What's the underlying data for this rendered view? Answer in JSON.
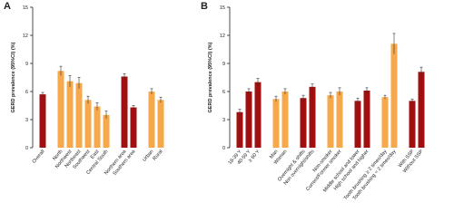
{
  "chart_data": [
    {
      "type": "bar",
      "label": "A",
      "ylabel": "GERD prevalence (95%CI) (%)",
      "ylim": [
        0,
        15
      ],
      "yticks": [
        0,
        3,
        6,
        9,
        12,
        15
      ],
      "categories": [
        "Overall",
        "North",
        "Northwest",
        "Northeast",
        "Southwest",
        "East",
        "Central South",
        "Northern area",
        "Southern area",
        "Urban",
        "Rural"
      ],
      "values": [
        5.7,
        8.2,
        7.1,
        6.9,
        5.1,
        4.4,
        3.5,
        7.6,
        4.3,
        6.0,
        5.1
      ],
      "errors": [
        0.2,
        0.5,
        0.6,
        0.6,
        0.4,
        0.4,
        0.4,
        0.3,
        0.2,
        0.3,
        0.3
      ],
      "colors": [
        "#a01010",
        "#f7a84a",
        "#f7a84a",
        "#f7a84a",
        "#f7a84a",
        "#f7a84a",
        "#f7a84a",
        "#a01010",
        "#a01010",
        "#f7a84a",
        "#f7a84a"
      ]
    },
    {
      "type": "bar",
      "label": "B",
      "ylabel": "GERD prevalence (95%CI) (%)",
      "ylim": [
        0,
        15
      ],
      "yticks": [
        0,
        3,
        6,
        9,
        12,
        15
      ],
      "categories": [
        "18-39 Y",
        "40-59 Y",
        "≥ 60 Y",
        "Man",
        "Woman",
        "Overnight & shifts",
        "Non overnight/shifts",
        "Non-smoker",
        "Current/Former smoker",
        "Middle school and lower",
        "High school and higher",
        "Tooth brushing ≥ 2 times/day",
        "Tooth brushing < 2 times/day",
        "With SSP",
        "Without SSP"
      ],
      "values": [
        3.8,
        6.0,
        7.0,
        5.2,
        6.0,
        5.3,
        6.5,
        5.6,
        6.0,
        5.0,
        6.1,
        5.4,
        11.1,
        5.0,
        8.1
      ],
      "errors": [
        0.3,
        0.3,
        0.4,
        0.3,
        0.3,
        0.3,
        0.3,
        0.3,
        0.4,
        0.3,
        0.3,
        0.2,
        1.1,
        0.2,
        0.5
      ],
      "colors": [
        "#a01010",
        "#a01010",
        "#a01010",
        "#f7a84a",
        "#f7a84a",
        "#a01010",
        "#a01010",
        "#f7a84a",
        "#f7a84a",
        "#a01010",
        "#a01010",
        "#f7a84a",
        "#f7a84a",
        "#a01010",
        "#a01010"
      ]
    }
  ]
}
